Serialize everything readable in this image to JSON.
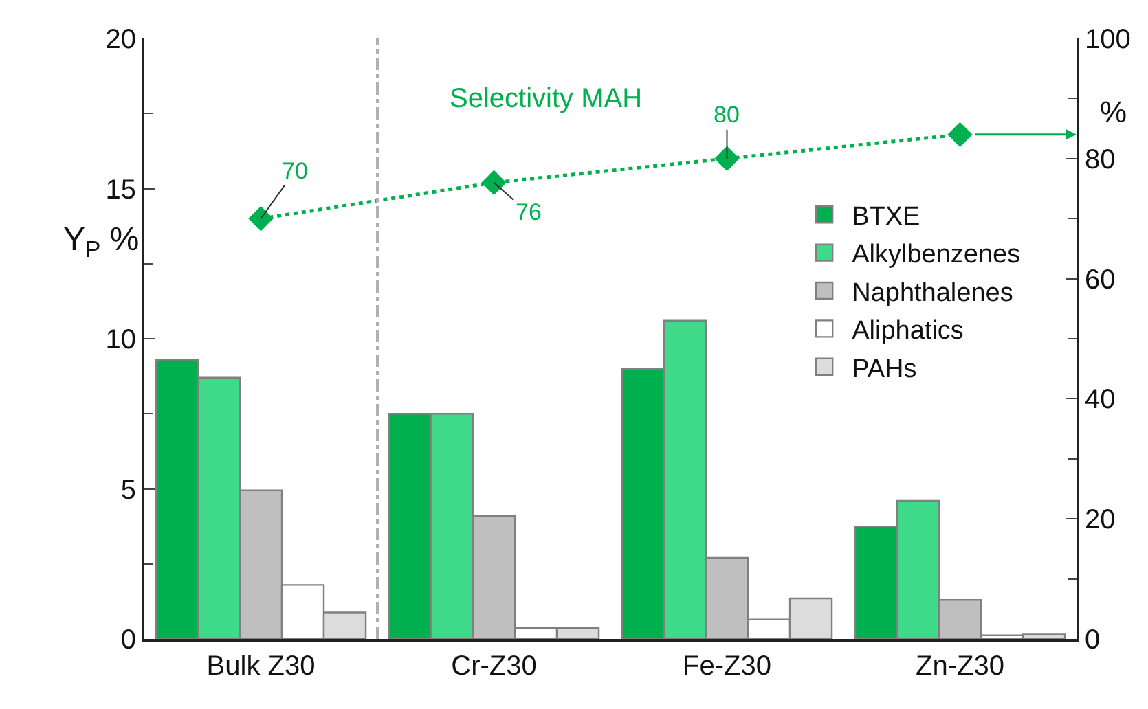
{
  "chart_data": {
    "type": "bar",
    "ylabel": "Y$_{P}$ %",
    "y2label": "%",
    "categories": [
      "Bulk Z30",
      "Cr-Z30",
      "Fe-Z30",
      "Zn-Z30"
    ],
    "series": [
      {
        "name": "BTXE",
        "color": "#00b04f",
        "values": [
          9.3,
          7.5,
          9.0,
          3.75
        ]
      },
      {
        "name": "Alkylbenzenes",
        "color": "#3fd98a",
        "values": [
          8.7,
          7.5,
          10.6,
          4.6
        ]
      },
      {
        "name": "Naphthalenes",
        "color": "#bfbfbf",
        "values": [
          4.95,
          4.1,
          2.7,
          1.3
        ]
      },
      {
        "name": "Aliphatics",
        "color": "#ffffff",
        "values": [
          1.8,
          0.37,
          0.65,
          0.12
        ]
      },
      {
        "name": "PAHs",
        "color": "#dcdcdc",
        "values": [
          0.88,
          0.37,
          1.35,
          0.15
        ]
      },
      {
        "name": "Selectivity MAH",
        "type": "line",
        "axis": "y2",
        "color": "#00b04f",
        "marker": "diamond",
        "line_style": "dotted",
        "values": [
          70,
          76,
          80,
          84
        ],
        "value_labels": [
          "70",
          "76",
          "80",
          null
        ]
      }
    ],
    "ylim": [
      0,
      20
    ],
    "yticks": [
      0,
      5,
      10,
      15,
      20
    ],
    "y2lim": [
      0,
      100
    ],
    "y2ticks": [
      0,
      20,
      40,
      60,
      80,
      100
    ],
    "legend": "right",
    "grid": false
  }
}
